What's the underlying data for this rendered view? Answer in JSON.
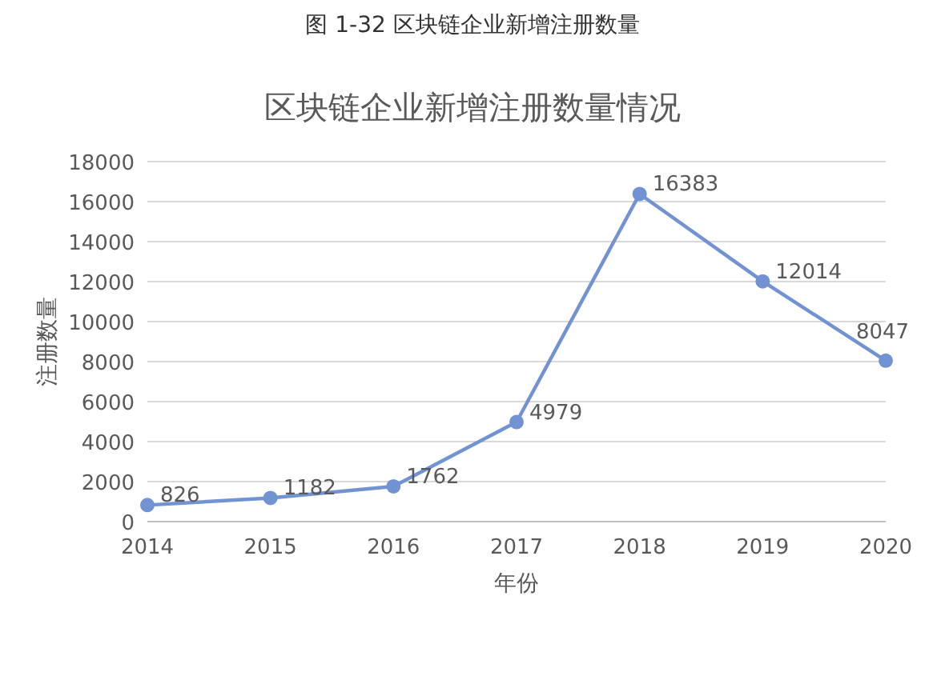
{
  "chart_data": {
    "type": "line",
    "title": "区块链企业新增注册数量情况",
    "annotations": [
      "图 1-32  区块链企业新增注册数量"
    ],
    "xlabel": "年份",
    "ylabel": "注册数量",
    "x": [
      2014,
      2015,
      2016,
      2017,
      2018,
      2019,
      2020
    ],
    "series": [
      {
        "color": "#7293d3",
        "values": [
          826,
          1182,
          1762,
          4979,
          16383,
          12014,
          8047
        ]
      }
    ],
    "xlim": [
      2014,
      2020
    ],
    "xticks": [
      2014,
      2015,
      2016,
      2017,
      2018,
      2019,
      2020
    ],
    "ylim": [
      0,
      18000
    ],
    "yticks": [
      0,
      2000,
      4000,
      6000,
      8000,
      10000,
      12000,
      14000,
      16000,
      18000
    ],
    "grid": "y",
    "marker": "circle",
    "line_style": "solid",
    "data_labels": true
  }
}
